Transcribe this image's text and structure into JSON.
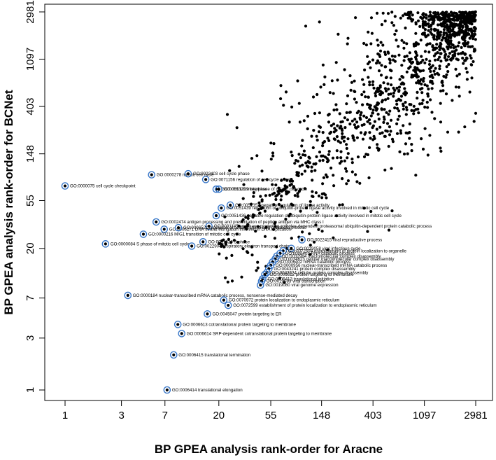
{
  "chart_data": {
    "type": "scatter",
    "scale": "log",
    "xlabel": "BP GPEA analysis rank-order for Aracne",
    "ylabel": "BP GPEA analysis rank-order for BCNet",
    "x_ticks": [
      "1",
      "3",
      "7",
      "20",
      "55",
      "148",
      "403",
      "1097",
      "2981"
    ],
    "y_ticks": [
      "1",
      "3",
      "7",
      "20",
      "55",
      "148",
      "403",
      "1097",
      "2981"
    ],
    "xlim": [
      1,
      2981
    ],
    "ylim": [
      1,
      2981
    ],
    "grid": false,
    "highlighted": [
      {
        "label": "GO:0000278 mitotic cell cycle",
        "x": 5.4,
        "y": 95
      },
      {
        "label": "GO:0022403 cell cycle phase",
        "x": 11,
        "y": 97
      },
      {
        "label": "GO:0071156 regulation of cell cycle arrest",
        "x": 15.5,
        "y": 86
      },
      {
        "label": "GO:0000075 cell cycle checkpoint",
        "x": 1,
        "y": 75
      },
      {
        "label": "GO:0051325 interphase",
        "x": 19,
        "y": 70
      },
      {
        "label": "GO:0051329 interphase of mitotic cell cycle",
        "x": 20,
        "y": 70
      },
      {
        "label": "GO:0051352 negative regulation of ligase activity",
        "x": 25,
        "y": 50
      },
      {
        "label": "GO:0051439 regulation of ubiquitin-protein ligase activity involved in mitotic cell cycle",
        "x": 21,
        "y": 47
      },
      {
        "label": "GO:0051436 negative regulation of ubiquitin-protein ligase activity involved in mitotic cell cycle",
        "x": 19,
        "y": 40
      },
      {
        "label": "GO:0002474 antigen processing and presentation of peptide antigen via MHC class I",
        "x": 5.9,
        "y": 35
      },
      {
        "label": "GO:0031145 anaphase-promoting complex-dependent proteasomal ubiquitin-dependent protein catabolic process",
        "x": 16.5,
        "y": 32
      },
      {
        "label": "GO:0006271 DNA strand elongation involved in DNA replication",
        "x": 6.9,
        "y": 30
      },
      {
        "label": "GO:0006521 regulation of cellular amino acid metabolic process",
        "x": 9.1,
        "y": 31
      },
      {
        "label": "GO:0000216 M/G1 transition of mitotic cell cycle",
        "x": 4.6,
        "y": 27
      },
      {
        "label": "GO:0022415 viral reproductive process",
        "x": 101,
        "y": 24
      },
      {
        "label": "GO:0000084 S phase of mitotic cell cycle",
        "x": 2.2,
        "y": 22
      },
      {
        "label": "GO:0051320 S phase",
        "x": 14.7,
        "y": 23
      },
      {
        "label": "GO:0022904 respiratory electron transport chain",
        "x": 11.8,
        "y": 21
      },
      {
        "label": "GO:0019058 viral infectious cycle",
        "x": 82,
        "y": 20
      },
      {
        "label": "GO:0072594 establishment of protein localization to organelle",
        "x": 70,
        "y": 19
      },
      {
        "label": "GO:0006401 RNA catabolic process",
        "x": 66,
        "y": 18
      },
      {
        "label": "GO:0032984 macromolecular complex disassembly",
        "x": 62,
        "y": 17
      },
      {
        "label": "GO:0034623 cellular macromolecular complex disassembly",
        "x": 60,
        "y": 16
      },
      {
        "label": "GO:0006402 mRNA catabolic process",
        "x": 57,
        "y": 15
      },
      {
        "label": "GO:0000956 nuclear-transcribed mRNA catabolic process",
        "x": 55,
        "y": 14
      },
      {
        "label": "GO:0043241 protein complex disassembly",
        "x": 53,
        "y": 13
      },
      {
        "label": "GO:0043624 cellular protein complex disassembly",
        "x": 51,
        "y": 12
      },
      {
        "label": "GO:0006612 protein targeting to membrane",
        "x": 49,
        "y": 11.5
      },
      {
        "label": "GO:0006413 translational initiation",
        "x": 47,
        "y": 10.5
      },
      {
        "label": "GO:0019083 viral transcription",
        "x": 46,
        "y": 10
      },
      {
        "label": "GO:0019080 viral genome expression",
        "x": 45,
        "y": 9.2
      },
      {
        "label": "GO:0000184 nuclear-transcribed mRNA catabolic process, nonsense-mediated decay",
        "x": 3.4,
        "y": 7.4
      },
      {
        "label": "GO:0070972 protein localization to endoplasmic reticulum",
        "x": 22,
        "y": 6.7
      },
      {
        "label": "GO:0072599 establishment of protein localization to endoplasmic reticulum",
        "x": 24,
        "y": 6
      },
      {
        "label": "GO:0045047 protein targeting to ER",
        "x": 16,
        "y": 5
      },
      {
        "label": "GO:0006613 cotranslational protein targeting to membrane",
        "x": 9,
        "y": 4
      },
      {
        "label": "GO:0006614 SRP-dependent cotranslational protein targeting to membrane",
        "x": 9.7,
        "y": 3.3
      },
      {
        "label": "GO:0006415 translational termination",
        "x": 8.3,
        "y": 2.1
      },
      {
        "label": "GO:0006414 translational elongation",
        "x": 7.3,
        "y": 1
      }
    ]
  },
  "colors": {
    "points": "#000000",
    "highlight_ring": "#3a78c9"
  }
}
